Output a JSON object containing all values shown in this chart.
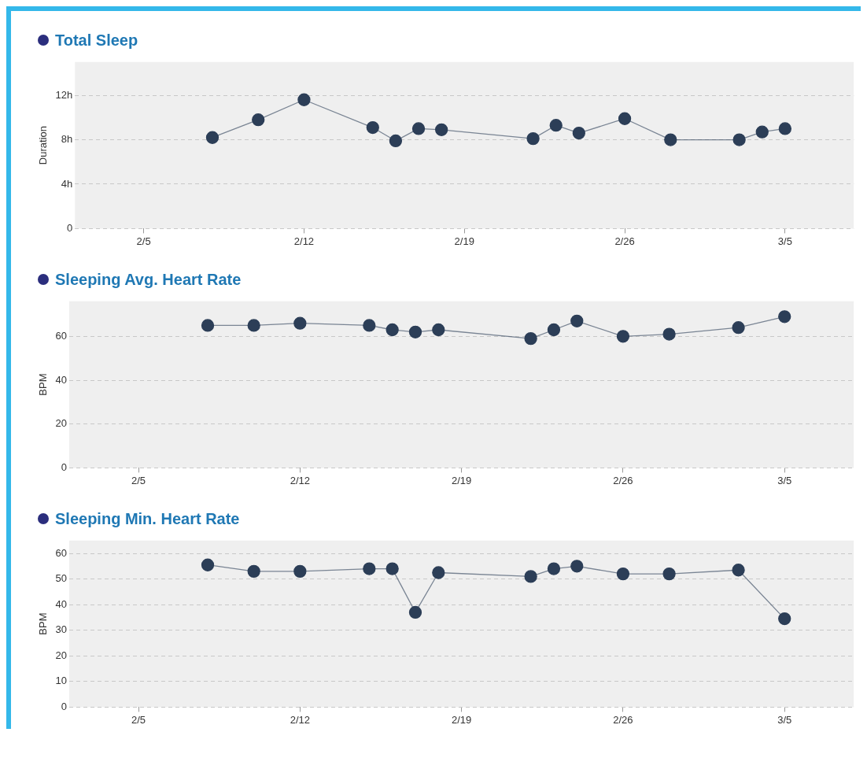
{
  "chart_data": [
    {
      "type": "line",
      "title": "Total Sleep",
      "ylabel": "Duration",
      "color": "#2c3e57",
      "marker": "circle",
      "grid": "y",
      "x": [
        "--02-08",
        "--02-10",
        "--02-12",
        "--02-15",
        "--02-16",
        "--02-17",
        "--02-18",
        "--02-22",
        "--02-23",
        "--02-24",
        "--02-26",
        "--02-28",
        "--03-03",
        "--03-04",
        "--03-05"
      ],
      "values": [
        8.2,
        9.8,
        11.6,
        9.1,
        7.9,
        9.0,
        8.9,
        8.1,
        9.3,
        8.6,
        9.9,
        8.0,
        8.0,
        8.7,
        9.0
      ],
      "xlim": [
        "--02-02",
        "--03-08"
      ],
      "xticks": [
        {
          "value": "--02-05",
          "label": "2/5"
        },
        {
          "value": "--02-12",
          "label": "2/12"
        },
        {
          "value": "--02-19",
          "label": "2/19"
        },
        {
          "value": "--02-26",
          "label": "2/26"
        },
        {
          "value": "--03-05",
          "label": "3/5"
        }
      ],
      "ylim": [
        0,
        15
      ],
      "yticks": [
        0,
        {
          "value": 4,
          "label": "4h"
        },
        {
          "value": 8,
          "label": "8h"
        },
        {
          "value": 12,
          "label": "12h"
        }
      ]
    },
    {
      "type": "line",
      "title": "Sleeping Avg. Heart Rate",
      "ylabel": "BPM",
      "color": "#2c3e57",
      "marker": "circle",
      "grid": "y",
      "x": [
        "--02-08",
        "--02-10",
        "--02-12",
        "--02-15",
        "--02-16",
        "--02-17",
        "--02-18",
        "--02-22",
        "--02-23",
        "--02-24",
        "--02-26",
        "--02-28",
        "--03-03",
        "--03-05"
      ],
      "values": [
        65,
        65,
        66,
        65,
        63,
        62,
        63,
        59,
        63,
        67,
        60,
        61,
        64,
        69
      ],
      "xlim": [
        "--02-02",
        "--03-08"
      ],
      "xticks": [
        {
          "value": "--02-05",
          "label": "2/5"
        },
        {
          "value": "--02-12",
          "label": "2/12"
        },
        {
          "value": "--02-19",
          "label": "2/19"
        },
        {
          "value": "--02-26",
          "label": "2/26"
        },
        {
          "value": "--03-05",
          "label": "3/5"
        }
      ],
      "ylim": [
        0,
        76
      ],
      "yticks": [
        0,
        20,
        40,
        60
      ]
    },
    {
      "type": "line",
      "title": "Sleeping Min. Heart Rate",
      "ylabel": "BPM",
      "color": "#2c3e57",
      "marker": "circle",
      "grid": "y",
      "x": [
        "--02-08",
        "--02-10",
        "--02-12",
        "--02-15",
        "--02-16",
        "--02-17",
        "--02-18",
        "--02-22",
        "--02-23",
        "--02-24",
        "--02-26",
        "--02-28",
        "--03-03",
        "--03-05"
      ],
      "values": [
        55.5,
        53,
        53,
        54,
        54,
        37,
        52.5,
        51,
        54,
        55,
        52,
        52,
        53.5,
        34.5
      ],
      "xlim": [
        "--02-02",
        "--03-08"
      ],
      "xticks": [
        {
          "value": "--02-05",
          "label": "2/5"
        },
        {
          "value": "--02-12",
          "label": "2/12"
        },
        {
          "value": "--02-19",
          "label": "2/19"
        },
        {
          "value": "--02-26",
          "label": "2/26"
        },
        {
          "value": "--03-05",
          "label": "3/5"
        }
      ],
      "ylim": [
        0,
        65
      ],
      "yticks": [
        0,
        10,
        20,
        30,
        40,
        50,
        60
      ]
    }
  ]
}
